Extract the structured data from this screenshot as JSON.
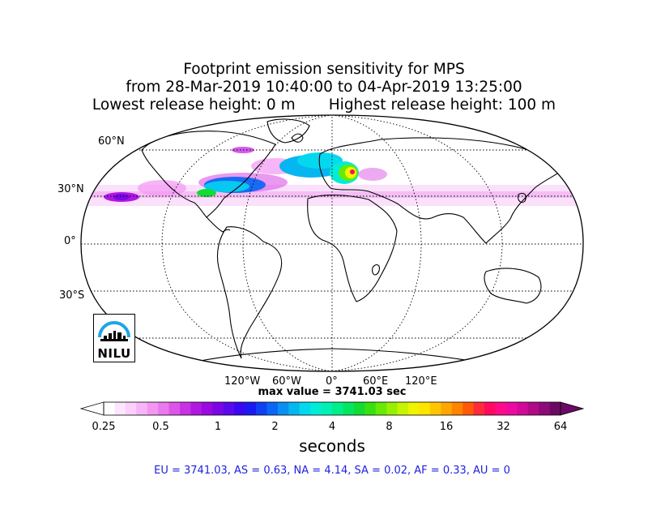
{
  "title": {
    "line1": "Footprint emission sensitivity for MPS",
    "line2": "from 28-Mar-2019 10:40:00 to 04-Apr-2019 13:25:00",
    "line3": "Lowest release height: 0 m       Highest release height: 100 m"
  },
  "map": {
    "projection": "robinson",
    "lat_labels": [
      "60°N",
      "30°N",
      "0°",
      "30°S"
    ],
    "lon_labels": [
      "120°W",
      "60°W",
      "0°",
      "60°E",
      "120°E"
    ]
  },
  "max_value_text": "max value = 3741.03 sec",
  "colorbar": {
    "ticks": [
      "0.25",
      "0.5",
      "1",
      "2",
      "4",
      "8",
      "16",
      "32",
      "64"
    ],
    "units": "seconds",
    "colors": [
      "#ffffff",
      "#fde6fd",
      "#fbd0fb",
      "#f7b4f7",
      "#f296f2",
      "#ea78ee",
      "#dc55e8",
      "#c832e4",
      "#b018e2",
      "#9a0ae0",
      "#7a08e6",
      "#5a08ec",
      "#3a08f0",
      "#1a1af2",
      "#1040f4",
      "#0a66f4",
      "#0890f2",
      "#06b6f0",
      "#04d8ee",
      "#02ecd8",
      "#00f0b4",
      "#00ee8a",
      "#02e660",
      "#10dc34",
      "#38e010",
      "#66ea06",
      "#96f004",
      "#c6f402",
      "#f0f400",
      "#ffe400",
      "#ffc600",
      "#ffa600",
      "#ff8400",
      "#ff5a0a",
      "#ff2a3a",
      "#ff0a60",
      "#ff0a88",
      "#ee0aa0",
      "#d20a98",
      "#b00a86",
      "#8e0a78",
      "#6a0a64"
    ]
  },
  "stats_text": "EU = 3741.03,  AS = 0.63,  NA = 4.14,  SA = 0.02,  AF = 0.33,  AU = 0",
  "logo": {
    "text": "NILU"
  }
}
